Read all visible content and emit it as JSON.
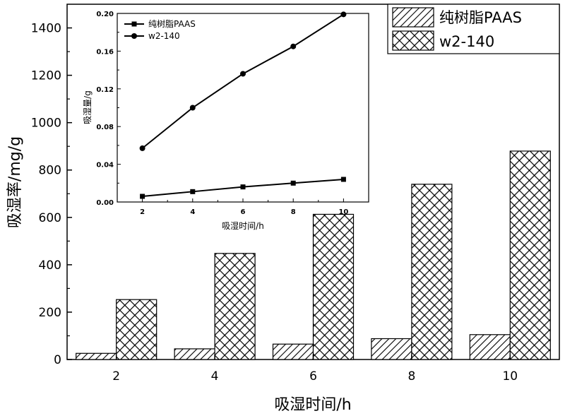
{
  "chart_data": [
    {
      "type": "bar",
      "xlabel": "吸湿时间/h",
      "ylabel": "吸湿率/mg/g",
      "categories": [
        "2",
        "4",
        "6",
        "8",
        "10"
      ],
      "ylim": [
        0,
        1500
      ],
      "yticks": [
        "0",
        "200",
        "400",
        "600",
        "800",
        "1000",
        "1200",
        "1400"
      ],
      "legend_position": "top-right",
      "series": [
        {
          "name": "纯树脂PAAS",
          "values": [
            26,
            45,
            65,
            88,
            105
          ],
          "pattern": "hatch"
        },
        {
          "name": "w2-140",
          "values": [
            253,
            448,
            613,
            740,
            880
          ],
          "pattern": "crosshatch"
        }
      ]
    },
    {
      "type": "line",
      "xlabel": "吸湿时间/h",
      "ylabel": "吸湿量/g",
      "x": [
        2,
        4,
        6,
        8,
        10
      ],
      "xlim": [
        1,
        11
      ],
      "ylim": [
        0,
        0.2
      ],
      "xticks": [
        "2",
        "4",
        "6",
        "8",
        "10"
      ],
      "yticks": [
        "0.00",
        "0.04",
        "0.08",
        "0.12",
        "0.16",
        "0.20"
      ],
      "legend_position": "top-left",
      "series": [
        {
          "name": "纯树脂PAAS",
          "marker": "square",
          "values": [
            0.006,
            0.011,
            0.016,
            0.02,
            0.024
          ]
        },
        {
          "name": "w2-140",
          "marker": "circle",
          "values": [
            0.057,
            0.1,
            0.136,
            0.165,
            0.199
          ]
        }
      ]
    }
  ]
}
